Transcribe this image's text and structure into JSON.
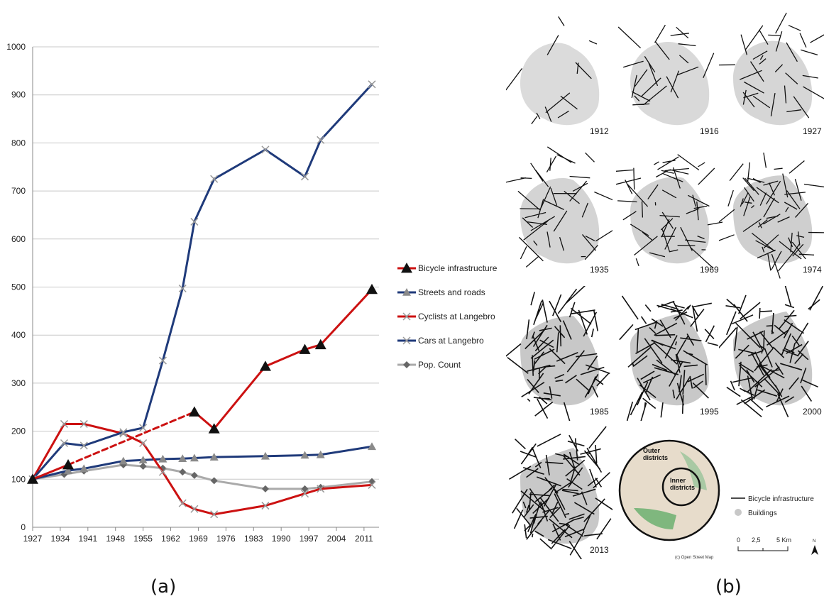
{
  "chart_data": {
    "type": "line",
    "xlabel": "",
    "ylabel": "",
    "ylim": [
      0,
      1000
    ],
    "yticks": [
      0,
      100,
      200,
      300,
      400,
      500,
      600,
      700,
      800,
      900,
      1000
    ],
    "xticks": [
      1927,
      1934,
      1941,
      1948,
      1955,
      1962,
      1969,
      1976,
      1983,
      1990,
      1997,
      2004,
      2011
    ],
    "xlim": [
      1927,
      2013
    ],
    "grid": true,
    "legend_position": "right",
    "series": [
      {
        "name": "Bicycle infrastructure",
        "color": "#cc1111",
        "marker": "triangle",
        "x": [
          1927,
          1936,
          1968,
          1973,
          1986,
          1996,
          2000,
          2013
        ],
        "y": [
          100,
          130,
          240,
          205,
          335,
          370,
          380,
          495
        ],
        "dashed_segment": [
          1,
          2
        ]
      },
      {
        "name": "Streets and roads",
        "color": "#1f3a7a",
        "marker": "triangle-gray",
        "x": [
          1927,
          1936,
          1940,
          1950,
          1955,
          1960,
          1965,
          1968,
          1973,
          1986,
          1996,
          2000,
          2013
        ],
        "y": [
          100,
          118,
          122,
          138,
          140,
          142,
          143,
          144,
          146,
          148,
          150,
          151,
          168
        ]
      },
      {
        "name": "Cyclists at Langebro",
        "color": "#cc1111",
        "marker": "x",
        "x": [
          1927,
          1935,
          1940,
          1950,
          1955,
          1960,
          1965,
          1968,
          1973,
          1986,
          1996,
          2000,
          2013
        ],
        "y": [
          100,
          215,
          215,
          195,
          175,
          115,
          50,
          38,
          27,
          45,
          70,
          80,
          88
        ]
      },
      {
        "name": "Cars at Langebro",
        "color": "#1f3a7a",
        "marker": "x",
        "x": [
          1927,
          1935,
          1940,
          1950,
          1955,
          1960,
          1965,
          1968,
          1973,
          1986,
          1996,
          2000,
          2013
        ],
        "y": [
          100,
          175,
          170,
          198,
          207,
          347,
          497,
          636,
          725,
          786,
          730,
          806,
          922
        ]
      },
      {
        "name": "Pop. Count",
        "color": "#aaaaaa",
        "marker": "diamond",
        "x": [
          1927,
          1935,
          1940,
          1950,
          1955,
          1960,
          1965,
          1968,
          1973,
          1986,
          1996,
          2000,
          2013
        ],
        "y": [
          100,
          110,
          117,
          130,
          127,
          123,
          115,
          108,
          97,
          80,
          80,
          83,
          95
        ]
      }
    ]
  },
  "labels": {
    "panel_a": "(a)",
    "panel_b": "(b)"
  },
  "maps": {
    "years": [
      "1912",
      "1916",
      "1927",
      "1935",
      "1969",
      "1974",
      "1985",
      "1995",
      "2000",
      "2013"
    ],
    "inset": {
      "outer": "Outer\ndistricts",
      "inner": "Inner\ndistricts",
      "credit": "(c) Open Street Map"
    },
    "legend": {
      "bike": "Bicycle infrastructure",
      "buildings": "Buildings",
      "scale0": "0",
      "scale1": "2,5",
      "scale2": "5 Km",
      "north": "N"
    }
  }
}
